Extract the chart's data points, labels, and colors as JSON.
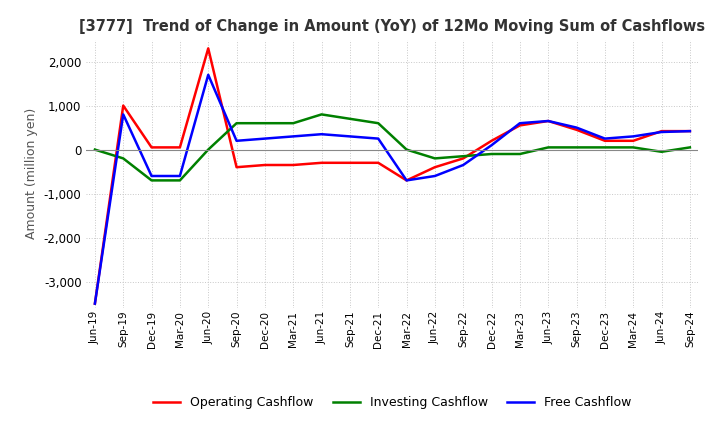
{
  "title": "[3777]  Trend of Change in Amount (YoY) of 12Mo Moving Sum of Cashflows",
  "ylabel": "Amount (million yen)",
  "x_labels": [
    "Jun-19",
    "Sep-19",
    "Dec-19",
    "Mar-20",
    "Jun-20",
    "Sep-20",
    "Dec-20",
    "Mar-21",
    "Jun-21",
    "Sep-21",
    "Dec-21",
    "Mar-22",
    "Jun-22",
    "Sep-22",
    "Dec-22",
    "Mar-23",
    "Jun-23",
    "Sep-23",
    "Dec-23",
    "Mar-24",
    "Jun-24",
    "Sep-24"
  ],
  "operating": [
    -3500,
    1000,
    50,
    50,
    2300,
    -400,
    -350,
    -350,
    -300,
    -300,
    -300,
    -700,
    -400,
    -200,
    200,
    550,
    650,
    450,
    200,
    200,
    420,
    420
  ],
  "investing": [
    0,
    -200,
    -700,
    -700,
    0,
    600,
    600,
    600,
    800,
    700,
    600,
    0,
    -200,
    -150,
    -100,
    -100,
    50,
    50,
    50,
    50,
    -50,
    50
  ],
  "free": [
    -3500,
    800,
    -600,
    -600,
    1700,
    200,
    250,
    300,
    350,
    300,
    250,
    -700,
    -600,
    -350,
    100,
    600,
    650,
    500,
    250,
    300,
    400,
    420
  ],
  "ylim": [
    -3600,
    2500
  ],
  "yticks": [
    -3000,
    -2000,
    -1000,
    0,
    1000,
    2000
  ],
  "operating_color": "#ff0000",
  "investing_color": "#008000",
  "free_color": "#0000ff",
  "bg_color": "#ffffff",
  "grid_color": "#c8c8c8",
  "title_color": "#404040"
}
